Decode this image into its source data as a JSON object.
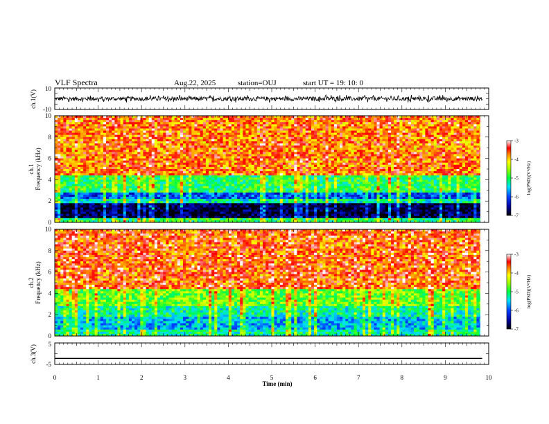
{
  "header": {
    "title": "VLF Spectra",
    "date": "Aug.22, 2025",
    "station": "station=OUJ",
    "start_ut": "start UT = 19: 10: 0"
  },
  "chart_data": [
    {
      "type": "line",
      "panel": "ch1-waveform",
      "ylabel": "ch.1(V)",
      "ylim": [
        -10,
        10
      ],
      "yticks": [
        10,
        -10
      ],
      "xlim": [
        0,
        10
      ],
      "description_series": [
        {
          "name": "ch.1",
          "baseline": 0,
          "amplitude_typical": 2,
          "spike_max": 3.5
        }
      ],
      "color": "#000000"
    },
    {
      "type": "heatmap",
      "panel": "ch1-spectrogram",
      "ylabel": "ch.1\nFrequency  (kHz)",
      "ylabel_line1": "ch.1",
      "ylabel_line2": "Frequency  (kHz)",
      "ylim": [
        0,
        10
      ],
      "yticks": [
        0,
        2,
        4,
        6,
        8,
        10
      ],
      "xlim": [
        0,
        9.85
      ],
      "colorbar": {
        "label": "log(PSD)(V²/Hz)",
        "range": [
          -7,
          -3
        ],
        "ticks": [
          -3,
          -4,
          -5,
          -6,
          -7
        ]
      },
      "bands_log_psd": [
        {
          "f_range": [
            0,
            0.4
          ],
          "level": -5.0
        },
        {
          "f_range": [
            0.4,
            1.8
          ],
          "level": -6.8
        },
        {
          "f_range": [
            1.8,
            2.2
          ],
          "level": -5.3
        },
        {
          "f_range": [
            2.2,
            2.8
          ],
          "level": -6.0
        },
        {
          "f_range": [
            2.8,
            4.5
          ],
          "level": -5.0
        },
        {
          "f_range": [
            4.5,
            10
          ],
          "level": -3.7
        }
      ]
    },
    {
      "type": "heatmap",
      "panel": "ch2-spectrogram",
      "ylabel": "ch.2\nFrequency  (kHz)",
      "ylabel_line1": "ch.2",
      "ylabel_line2": "Frequency  (kHz)",
      "ylim": [
        0,
        10
      ],
      "yticks": [
        0,
        2,
        4,
        6,
        8,
        10
      ],
      "xlim": [
        0,
        9.85
      ],
      "colorbar": {
        "label": "log(PSD)(V²/Hz)",
        "range": [
          -7,
          -3
        ],
        "ticks": [
          -3,
          -4,
          -5,
          -6,
          -7
        ]
      },
      "bands_log_psd": [
        {
          "f_range": [
            0,
            0.6
          ],
          "level": -5.2
        },
        {
          "f_range": [
            0.6,
            1.8
          ],
          "level": -5.6
        },
        {
          "f_range": [
            1.8,
            2.8
          ],
          "level": -5.2
        },
        {
          "f_range": [
            2.8,
            4.5
          ],
          "level": -4.7
        },
        {
          "f_range": [
            4.5,
            10
          ],
          "level": -3.6
        }
      ]
    },
    {
      "type": "line",
      "panel": "ch3-waveform",
      "ylabel": "ch.3(V)",
      "ylim": [
        -5,
        5
      ],
      "yticks": [
        5,
        0,
        -5
      ],
      "ytick_labels": [
        "5",
        "",
        "-5"
      ],
      "xlim": [
        0,
        10
      ],
      "x": [
        0,
        9.85
      ],
      "y": [
        -2.2,
        -2.2
      ],
      "color": "#000000"
    }
  ],
  "xaxis": {
    "label": "Time  (min)",
    "ticks": [
      0,
      1,
      2,
      3,
      4,
      5,
      6,
      7,
      8,
      9,
      10
    ]
  }
}
